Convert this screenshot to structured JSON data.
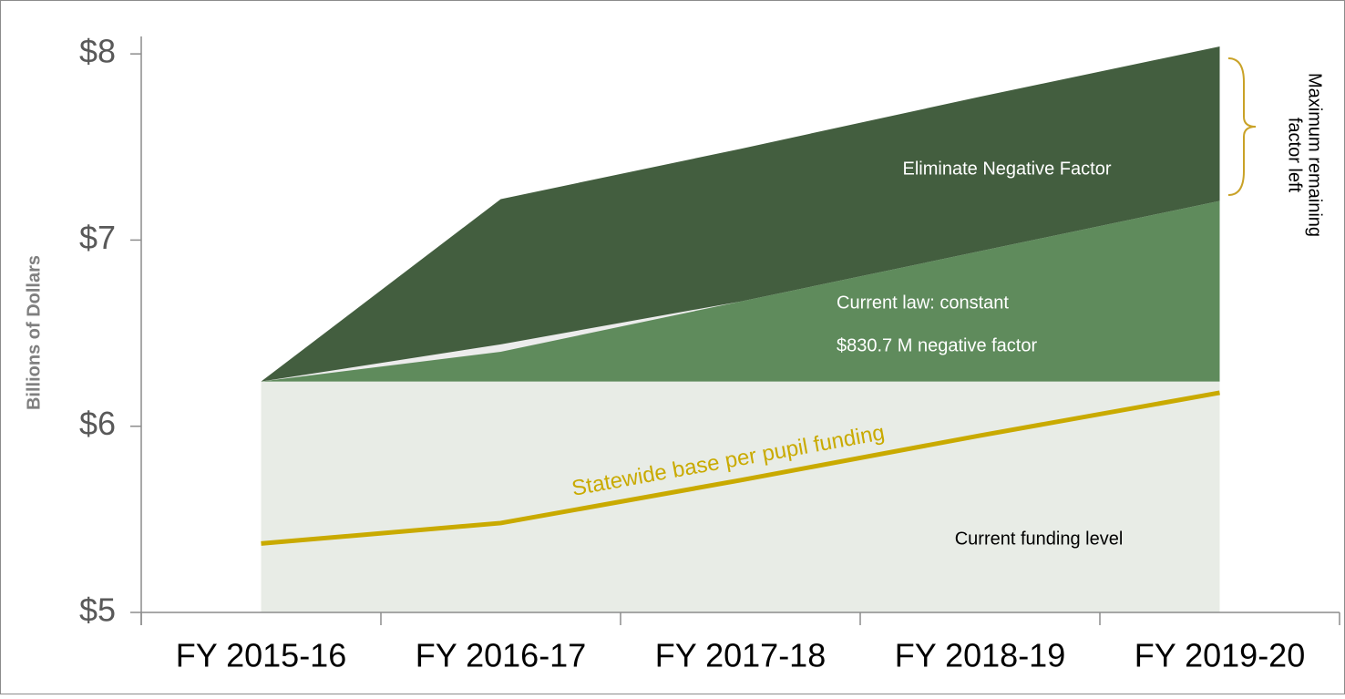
{
  "chart_data": {
    "type": "area",
    "y_label": "Billions of Dollars",
    "categories": [
      "FY 2015-16",
      "FY 2016-17",
      "FY 2017-18",
      "FY 2018-19",
      "FY 2019-20"
    ],
    "series": [
      {
        "name": "Eliminate Negative Factor",
        "color": "#435e3f",
        "values": [
          6.24,
          7.22,
          7.49,
          7.77,
          8.04
        ]
      },
      {
        "color": "#ececec",
        "values": [
          6.24,
          6.44,
          6.67,
          6.94,
          7.21
        ]
      },
      {
        "label_lines": [
          "Current law: constant",
          "$830.7 M negative factor"
        ],
        "color": "#5f8b5c",
        "values": [
          6.24,
          6.4,
          6.67,
          6.94,
          7.21
        ]
      },
      {
        "name": "Current funding level",
        "color": "#e8ece6",
        "values": [
          6.24,
          6.24,
          6.24,
          6.24,
          6.24
        ]
      },
      {
        "name": "Statewide base per pupil funding",
        "type": "line",
        "color": "#c9aa00",
        "values": [
          5.37,
          5.48,
          5.71,
          5.95,
          6.18
        ]
      }
    ],
    "bracket_label": [
      "Maximum remaining",
      "factor left"
    ],
    "ylim": [
      5,
      8.1
    ],
    "yticks": [
      {
        "value": 5,
        "label": "$5"
      },
      {
        "value": 6,
        "label": "$6"
      },
      {
        "value": 7,
        "label": "$7"
      },
      {
        "value": 8,
        "label": "$8"
      }
    ]
  }
}
